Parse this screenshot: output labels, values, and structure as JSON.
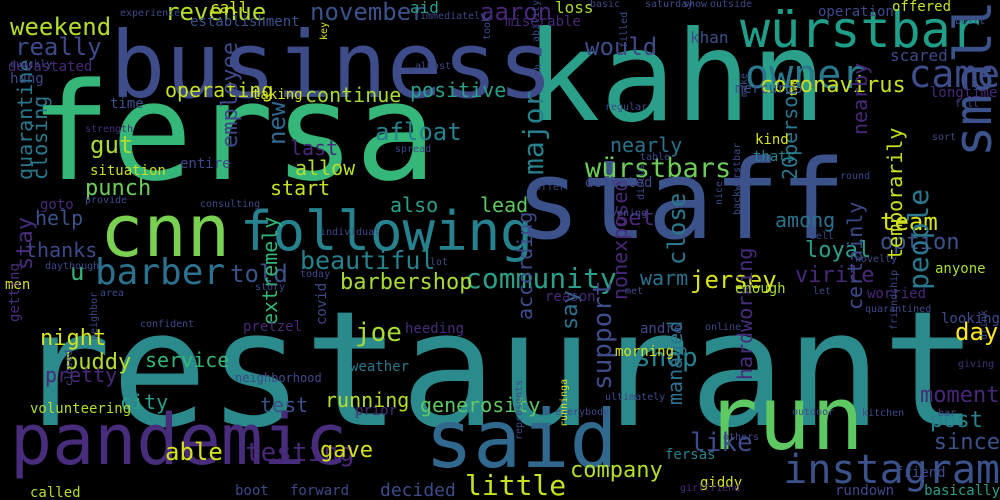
{
  "words": [
    {
      "text": "restaurant",
      "color": "#2a8a8c"
    },
    {
      "text": "fersa",
      "color": "#35b779"
    },
    {
      "text": "kahn",
      "color": "#2a9f8a"
    },
    {
      "text": "staff",
      "color": "#3b528b"
    },
    {
      "text": "business",
      "color": "#3e4c8a"
    },
    {
      "text": "run",
      "color": "#5ec962"
    },
    {
      "text": "said",
      "color": "#31688e"
    },
    {
      "text": "pandemic",
      "color": "#472d7b"
    },
    {
      "text": "cnn",
      "color": "#7ad151"
    },
    {
      "text": "following",
      "color": "#26828e"
    },
    {
      "text": "würstbar",
      "color": "#1f9e89"
    },
    {
      "text": "small",
      "color": "#3b528b"
    },
    {
      "text": "owner",
      "color": "#2a788e"
    },
    {
      "text": "came",
      "color": "#3e4c8a"
    },
    {
      "text": "instagram",
      "color": "#3b528b"
    },
    {
      "text": "barber",
      "color": "#2c728e"
    },
    {
      "text": "community",
      "color": "#2a9f8a"
    },
    {
      "text": "beautiful",
      "color": "#26828e"
    },
    {
      "text": "würstbars",
      "color": "#6ece58"
    },
    {
      "text": "november",
      "color": "#3b528b"
    },
    {
      "text": "weekend",
      "color": "#b5de2b"
    },
    {
      "text": "really",
      "color": "#3e4a89"
    },
    {
      "text": "revenue",
      "color": "#b5de2b"
    },
    {
      "text": "aaron",
      "color": "#482878"
    },
    {
      "text": "would",
      "color": "#3e4c8a"
    },
    {
      "text": "coronavirus",
      "color": "#c8e020"
    },
    {
      "text": "operating",
      "color": "#c8e020"
    },
    {
      "text": "continue",
      "color": "#a8db34"
    },
    {
      "text": "positive",
      "color": "#2a9f8a"
    },
    {
      "text": "major",
      "color": "#26828e"
    },
    {
      "text": "afloat",
      "color": "#26828e"
    },
    {
      "text": "last",
      "color": "#482878"
    },
    {
      "text": "allow",
      "color": "#b5de2b"
    },
    {
      "text": "new",
      "color": "#31688e"
    },
    {
      "text": "gut",
      "color": "#a8db34"
    },
    {
      "text": "punch",
      "color": "#6ece58"
    },
    {
      "text": "employee",
      "color": "#3e4a89"
    },
    {
      "text": "start",
      "color": "#c8e020"
    },
    {
      "text": "closing",
      "color": "#2a788e"
    },
    {
      "text": "quarantine",
      "color": "#2a788e"
    },
    {
      "text": "help",
      "color": "#3b528b"
    },
    {
      "text": "thanks",
      "color": "#3e4a89"
    },
    {
      "text": "stay",
      "color": "#472d7b"
    },
    {
      "text": "u",
      "color": "#35b779"
    },
    {
      "text": "also",
      "color": "#2a9f8a"
    },
    {
      "text": "lead",
      "color": "#5ec962"
    },
    {
      "text": "set",
      "color": "#482878"
    },
    {
      "text": "team",
      "color": "#d8e219"
    },
    {
      "text": "among",
      "color": "#2c728e"
    },
    {
      "text": "loyal",
      "color": "#2a9f8a"
    },
    {
      "text": "option",
      "color": "#3b528b"
    },
    {
      "text": "told",
      "color": "#3b528b"
    },
    {
      "text": "barbershop",
      "color": "#a8db34"
    },
    {
      "text": "jersey",
      "color": "#d8e219"
    },
    {
      "text": "close",
      "color": "#2a788e"
    },
    {
      "text": "virile",
      "color": "#482878"
    },
    {
      "text": "warm",
      "color": "#2c728e"
    },
    {
      "text": "joe",
      "color": "#a8db34"
    },
    {
      "text": "night",
      "color": "#d8e219"
    },
    {
      "text": "say",
      "color": "#2c728e"
    },
    {
      "text": "according",
      "color": "#3e4c8a"
    },
    {
      "text": "shop",
      "color": "#26828e"
    },
    {
      "text": "support",
      "color": "#3e4c8a"
    },
    {
      "text": "nonexposed",
      "color": "#482878"
    },
    {
      "text": "people",
      "color": "#2a788e"
    },
    {
      "text": "day",
      "color": "#fde725"
    },
    {
      "text": "moment",
      "color": "#482878"
    },
    {
      "text": "post",
      "color": "#26828e"
    },
    {
      "text": "since",
      "color": "#3b528b"
    },
    {
      "text": "like",
      "color": "#3e4a89"
    },
    {
      "text": "buddy",
      "color": "#b5de2b"
    },
    {
      "text": "service",
      "color": "#35b779"
    },
    {
      "text": "city",
      "color": "#2a9f8a"
    },
    {
      "text": "pretty",
      "color": "#482878"
    },
    {
      "text": "test",
      "color": "#3b528b"
    },
    {
      "text": "running",
      "color": "#b5de2b"
    },
    {
      "text": "generosity",
      "color": "#5ec962"
    },
    {
      "text": "able",
      "color": "#d8e219"
    },
    {
      "text": "testing",
      "color": "#482878"
    },
    {
      "text": "gave",
      "color": "#d8e219"
    },
    {
      "text": "decided",
      "color": "#3e4a89"
    },
    {
      "text": "little",
      "color": "#c8e020"
    },
    {
      "text": "company",
      "color": "#b5de2b"
    },
    {
      "text": "managed",
      "color": "#2c728e"
    },
    {
      "text": "hardworking",
      "color": "#472d7b"
    },
    {
      "text": "extremely",
      "color": "#35b779"
    },
    {
      "text": "certainly",
      "color": "#3e4a89"
    },
    {
      "text": "temporarily",
      "color": "#c8e020"
    },
    {
      "text": "nearly",
      "color": "#2c728e"
    },
    {
      "text": "nearby",
      "color": "#482878"
    },
    {
      "text": "20person",
      "color": "#2a788e"
    },
    {
      "text": "call",
      "color": "#d8e219"
    },
    {
      "text": "aid",
      "color": "#2a9f8a"
    },
    {
      "text": "loss",
      "color": "#a8db34"
    },
    {
      "text": "khan",
      "color": "#3b528b"
    },
    {
      "text": "scared",
      "color": "#3e4a89"
    },
    {
      "text": "longtime",
      "color": "#482878"
    },
    {
      "text": "devastated",
      "color": "#482878"
    },
    {
      "text": "hung",
      "color": "#3e4a89"
    },
    {
      "text": "time",
      "color": "#3b528b"
    },
    {
      "text": "taking",
      "color": "#d8e219"
    },
    {
      "text": "miserable",
      "color": "#482878"
    },
    {
      "text": "establishment",
      "color": "#3b528b"
    },
    {
      "text": "mercurio",
      "color": "#3b528b"
    },
    {
      "text": "kind",
      "color": "#d8e219"
    },
    {
      "text": "thats",
      "color": "#26828e"
    },
    {
      "text": "defeated",
      "color": "#3e4a89"
    },
    {
      "text": "entire",
      "color": "#3e4a89"
    },
    {
      "text": "situation",
      "color": "#c8e020"
    },
    {
      "text": "goto",
      "color": "#482878"
    },
    {
      "text": "men",
      "color": "#d8e219"
    },
    {
      "text": "getting",
      "color": "#472d7b"
    },
    {
      "text": "volunteering",
      "color": "#b5de2b"
    },
    {
      "text": "covid",
      "color": "#3e4a89"
    },
    {
      "text": "weather",
      "color": "#2a788e"
    },
    {
      "text": "prior",
      "color": "#472d7b"
    },
    {
      "text": "heeding",
      "color": "#472d7b"
    },
    {
      "text": "morning",
      "color": "#d8e219"
    },
    {
      "text": "andre",
      "color": "#3e4a89"
    },
    {
      "text": "anyone",
      "color": "#a8db34"
    },
    {
      "text": "worried",
      "color": "#482878"
    },
    {
      "text": "looking",
      "color": "#3e4a89"
    },
    {
      "text": "rundown",
      "color": "#3e4a89"
    },
    {
      "text": "basically",
      "color": "#2a9f8a"
    },
    {
      "text": "friend",
      "color": "#3e4a89"
    },
    {
      "text": "fersas",
      "color": "#26828e"
    },
    {
      "text": "giddy",
      "color": "#d8e219"
    },
    {
      "text": "boot",
      "color": "#3e4a89"
    },
    {
      "text": "forward",
      "color": "#3e4a89"
    },
    {
      "text": "called",
      "color": "#b5de2b"
    },
    {
      "text": "pretzel",
      "color": "#482878"
    },
    {
      "text": "enough",
      "color": "#a8db34"
    },
    {
      "text": "reason",
      "color": "#482878"
    },
    {
      "text": "confident",
      "color": "#3e4a89"
    },
    {
      "text": "show",
      "color": "#3e4a89"
    },
    {
      "text": "saturday",
      "color": "#3e4a89"
    },
    {
      "text": "basic",
      "color": "#3e4a89"
    },
    {
      "text": "outside",
      "color": "#3e4a89"
    },
    {
      "text": "operation",
      "color": "#3e4a89"
    },
    {
      "text": "offered",
      "color": "#c8e020"
    },
    {
      "text": "built",
      "color": "#3e4a89"
    },
    {
      "text": "quickly",
      "color": "#3e4a89"
    },
    {
      "text": "almost",
      "color": "#3e4a89"
    },
    {
      "text": "filled",
      "color": "#3e4a89"
    },
    {
      "text": "immediately",
      "color": "#3e4a89"
    },
    {
      "text": "experience",
      "color": "#3e4a89"
    },
    {
      "text": "strength",
      "color": "#472d7b"
    },
    {
      "text": "provide",
      "color": "#3e4a89"
    },
    {
      "text": "consulting",
      "color": "#3e4a89"
    },
    {
      "text": "individual",
      "color": "#3e4a89"
    },
    {
      "text": "lot",
      "color": "#3e4a89"
    },
    {
      "text": "daythough",
      "color": "#3e4a89"
    },
    {
      "text": "today",
      "color": "#3e4a89"
    },
    {
      "text": "story",
      "color": "#3e4a89"
    },
    {
      "text": "area",
      "color": "#3e4a89"
    },
    {
      "text": "spread",
      "color": "#3e4a89"
    },
    {
      "text": "offer",
      "color": "#3e4a89"
    },
    {
      "text": "table",
      "color": "#3e4a89"
    },
    {
      "text": "round",
      "color": "#3e4a89"
    },
    {
      "text": "evening",
      "color": "#3e4a89"
    },
    {
      "text": "backwürstbar",
      "color": "#3e4a89"
    },
    {
      "text": "sell",
      "color": "#3e4a89"
    },
    {
      "text": "novelty",
      "color": "#3e4a89"
    },
    {
      "text": "let",
      "color": "#3e4a89"
    },
    {
      "text": "met",
      "color": "#3e4a89"
    },
    {
      "text": "online",
      "color": "#3e4a89"
    },
    {
      "text": "ultimately",
      "color": "#3e4a89"
    },
    {
      "text": "everybody",
      "color": "#3e4a89"
    },
    {
      "text": "others",
      "color": "#3e4a89"
    },
    {
      "text": "outdoor",
      "color": "#3e4a89"
    },
    {
      "text": "kitchen",
      "color": "#3e4a89"
    },
    {
      "text": "bar",
      "color": "#3e4a89"
    },
    {
      "text": "giving",
      "color": "#472d7b"
    },
    {
      "text": "drink",
      "color": "#3e4a89"
    },
    {
      "text": "full",
      "color": "#3e4a89"
    },
    {
      "text": "sort",
      "color": "#3e4a89"
    },
    {
      "text": "key",
      "color": "#d8e219"
    },
    {
      "text": "ability",
      "color": "#3e4a89"
    },
    {
      "text": "took",
      "color": "#3e4a89"
    },
    {
      "text": "worth",
      "color": "#3e4a89"
    },
    {
      "text": "regular",
      "color": "#3e4a89"
    },
    {
      "text": "two",
      "color": "#d8e219"
    },
    {
      "text": "make",
      "color": "#3e4a89"
    },
    {
      "text": "neighbor",
      "color": "#3e4a89"
    },
    {
      "text": "closed",
      "color": "#3e4a89"
    },
    {
      "text": "neighborhood",
      "color": "#3e4a89"
    },
    {
      "text": "represents",
      "color": "#3e4a89"
    },
    {
      "text": "runninga",
      "color": "#d8e219"
    },
    {
      "text": "discus",
      "color": "#3e4a89"
    },
    {
      "text": "nice",
      "color": "#3e4a89"
    },
    {
      "text": "friendship",
      "color": "#3e4a89"
    },
    {
      "text": "quarantined",
      "color": "#3e4a89"
    },
    {
      "text": "girlfriend",
      "color": "#472d7b"
    },
    {
      "text": "rigorous",
      "color": "#3e4a89"
    },
    {
      "text": "7",
      "color": "#3e4a89"
    }
  ]
}
